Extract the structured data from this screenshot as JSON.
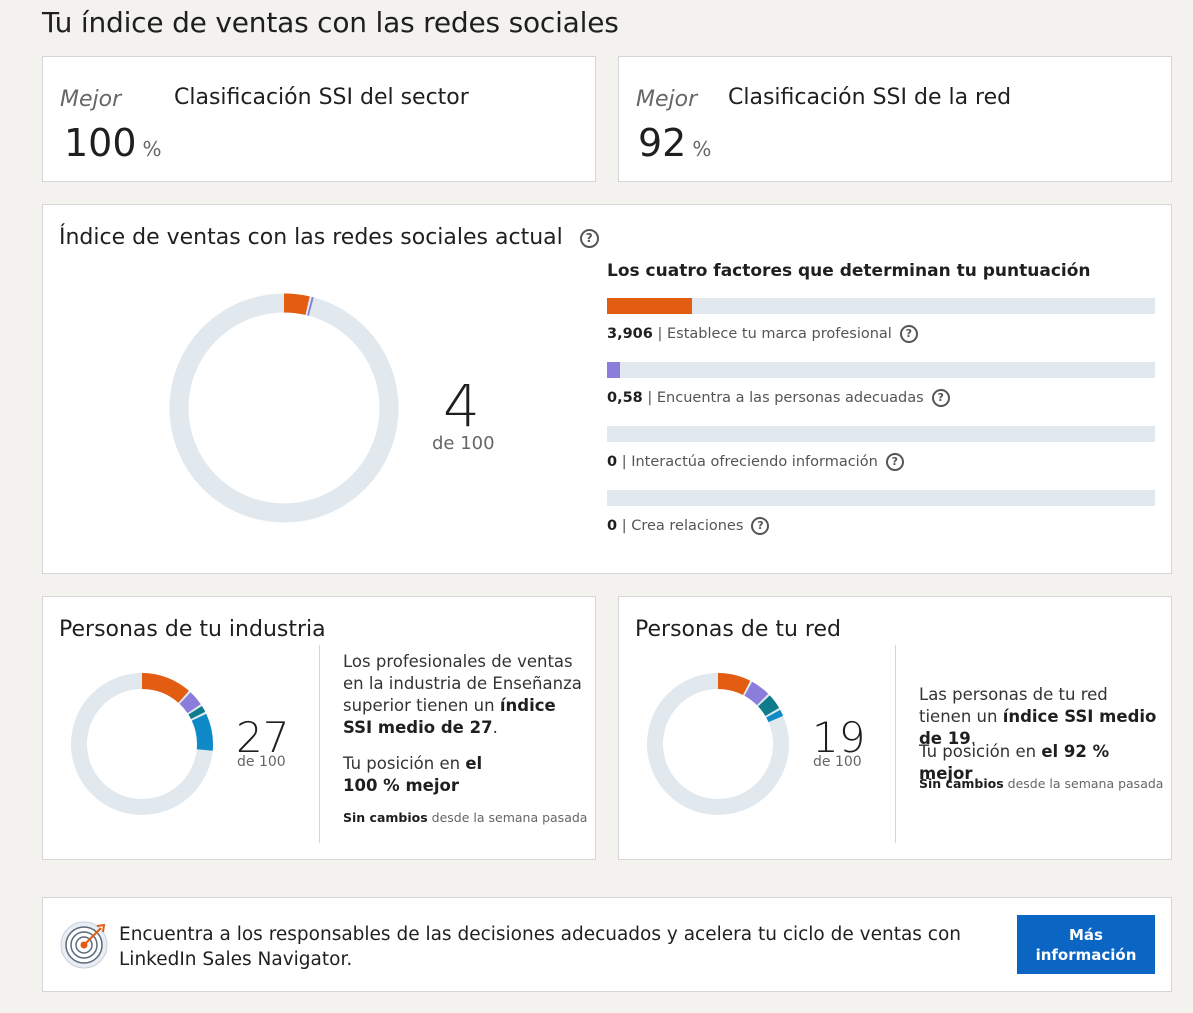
{
  "page_title": "Tu índice de ventas con las redes sociales",
  "sector_rank": {
    "best": "Mejor",
    "label": "Clasificación SSI del sector",
    "value": "100",
    "unit": "%"
  },
  "network_rank": {
    "best": "Mejor",
    "label": "Clasificación SSI de la red",
    "value": "92",
    "unit": "%"
  },
  "ssi": {
    "title": "Índice de ventas con las redes sociales actual",
    "help": "?",
    "score": "4",
    "score_value": 4,
    "out_of": "de 100",
    "factors_title": "Los cuatro factores que determinan tu puntuación",
    "factors": [
      {
        "value": "3,906",
        "label": "Establece tu marca profesional",
        "fraction": 0.156,
        "color": "#e25c12"
      },
      {
        "value": "0,58",
        "label": "Encuentra a las personas adecuadas",
        "fraction": 0.023,
        "color": "#8a7ddc"
      },
      {
        "value": "0",
        "label": "Interactúa ofreciendo información",
        "fraction": 0,
        "color": "#0f7c8c"
      },
      {
        "value": "0",
        "label": "Crea relaciones",
        "fraction": 0,
        "color": "#0e8ac8"
      }
    ],
    "separator": "|"
  },
  "industry": {
    "title": "Personas de tu industria",
    "score": "27",
    "out_of": "de 100",
    "segments": [
      12,
      4,
      2,
      9
    ],
    "desc_1": "Los profesionales de ventas en la industria de Enseñanza superior tienen un ",
    "desc_1_bold": "índice SSI medio de 27",
    "desc_1_end": ".",
    "pos_text": "Tu posición en ",
    "pos_bold": "el 100 % mejor",
    "change_bold": "Sin cambios",
    "change_text": " desde la semana pasada"
  },
  "network": {
    "title": "Personas de tu red",
    "score": "19",
    "out_of": "de 100",
    "segments": [
      8,
      5,
      4,
      2
    ],
    "desc_1": "Las personas de tu red tienen un ",
    "desc_1_bold": "índice SSI medio de 19",
    "desc_1_end": ".",
    "pos_text": "Tu posición en ",
    "pos_bold": "el 92 % mejor",
    "change_bold": "Sin cambios",
    "change_text": " desde la semana pasada"
  },
  "promo": {
    "text": "Encuentra a los responsables de las decisiones adecuados y acelera tu ciclo de ventas con LinkedIn Sales Navigator.",
    "button": "Más información"
  },
  "colors": {
    "orange": "#e25c12",
    "purple": "#8a7ddc",
    "teal": "#0f7c8c",
    "blue": "#0e8ac8",
    "track": "#e1e8ee",
    "primary": "#0a66c2"
  }
}
